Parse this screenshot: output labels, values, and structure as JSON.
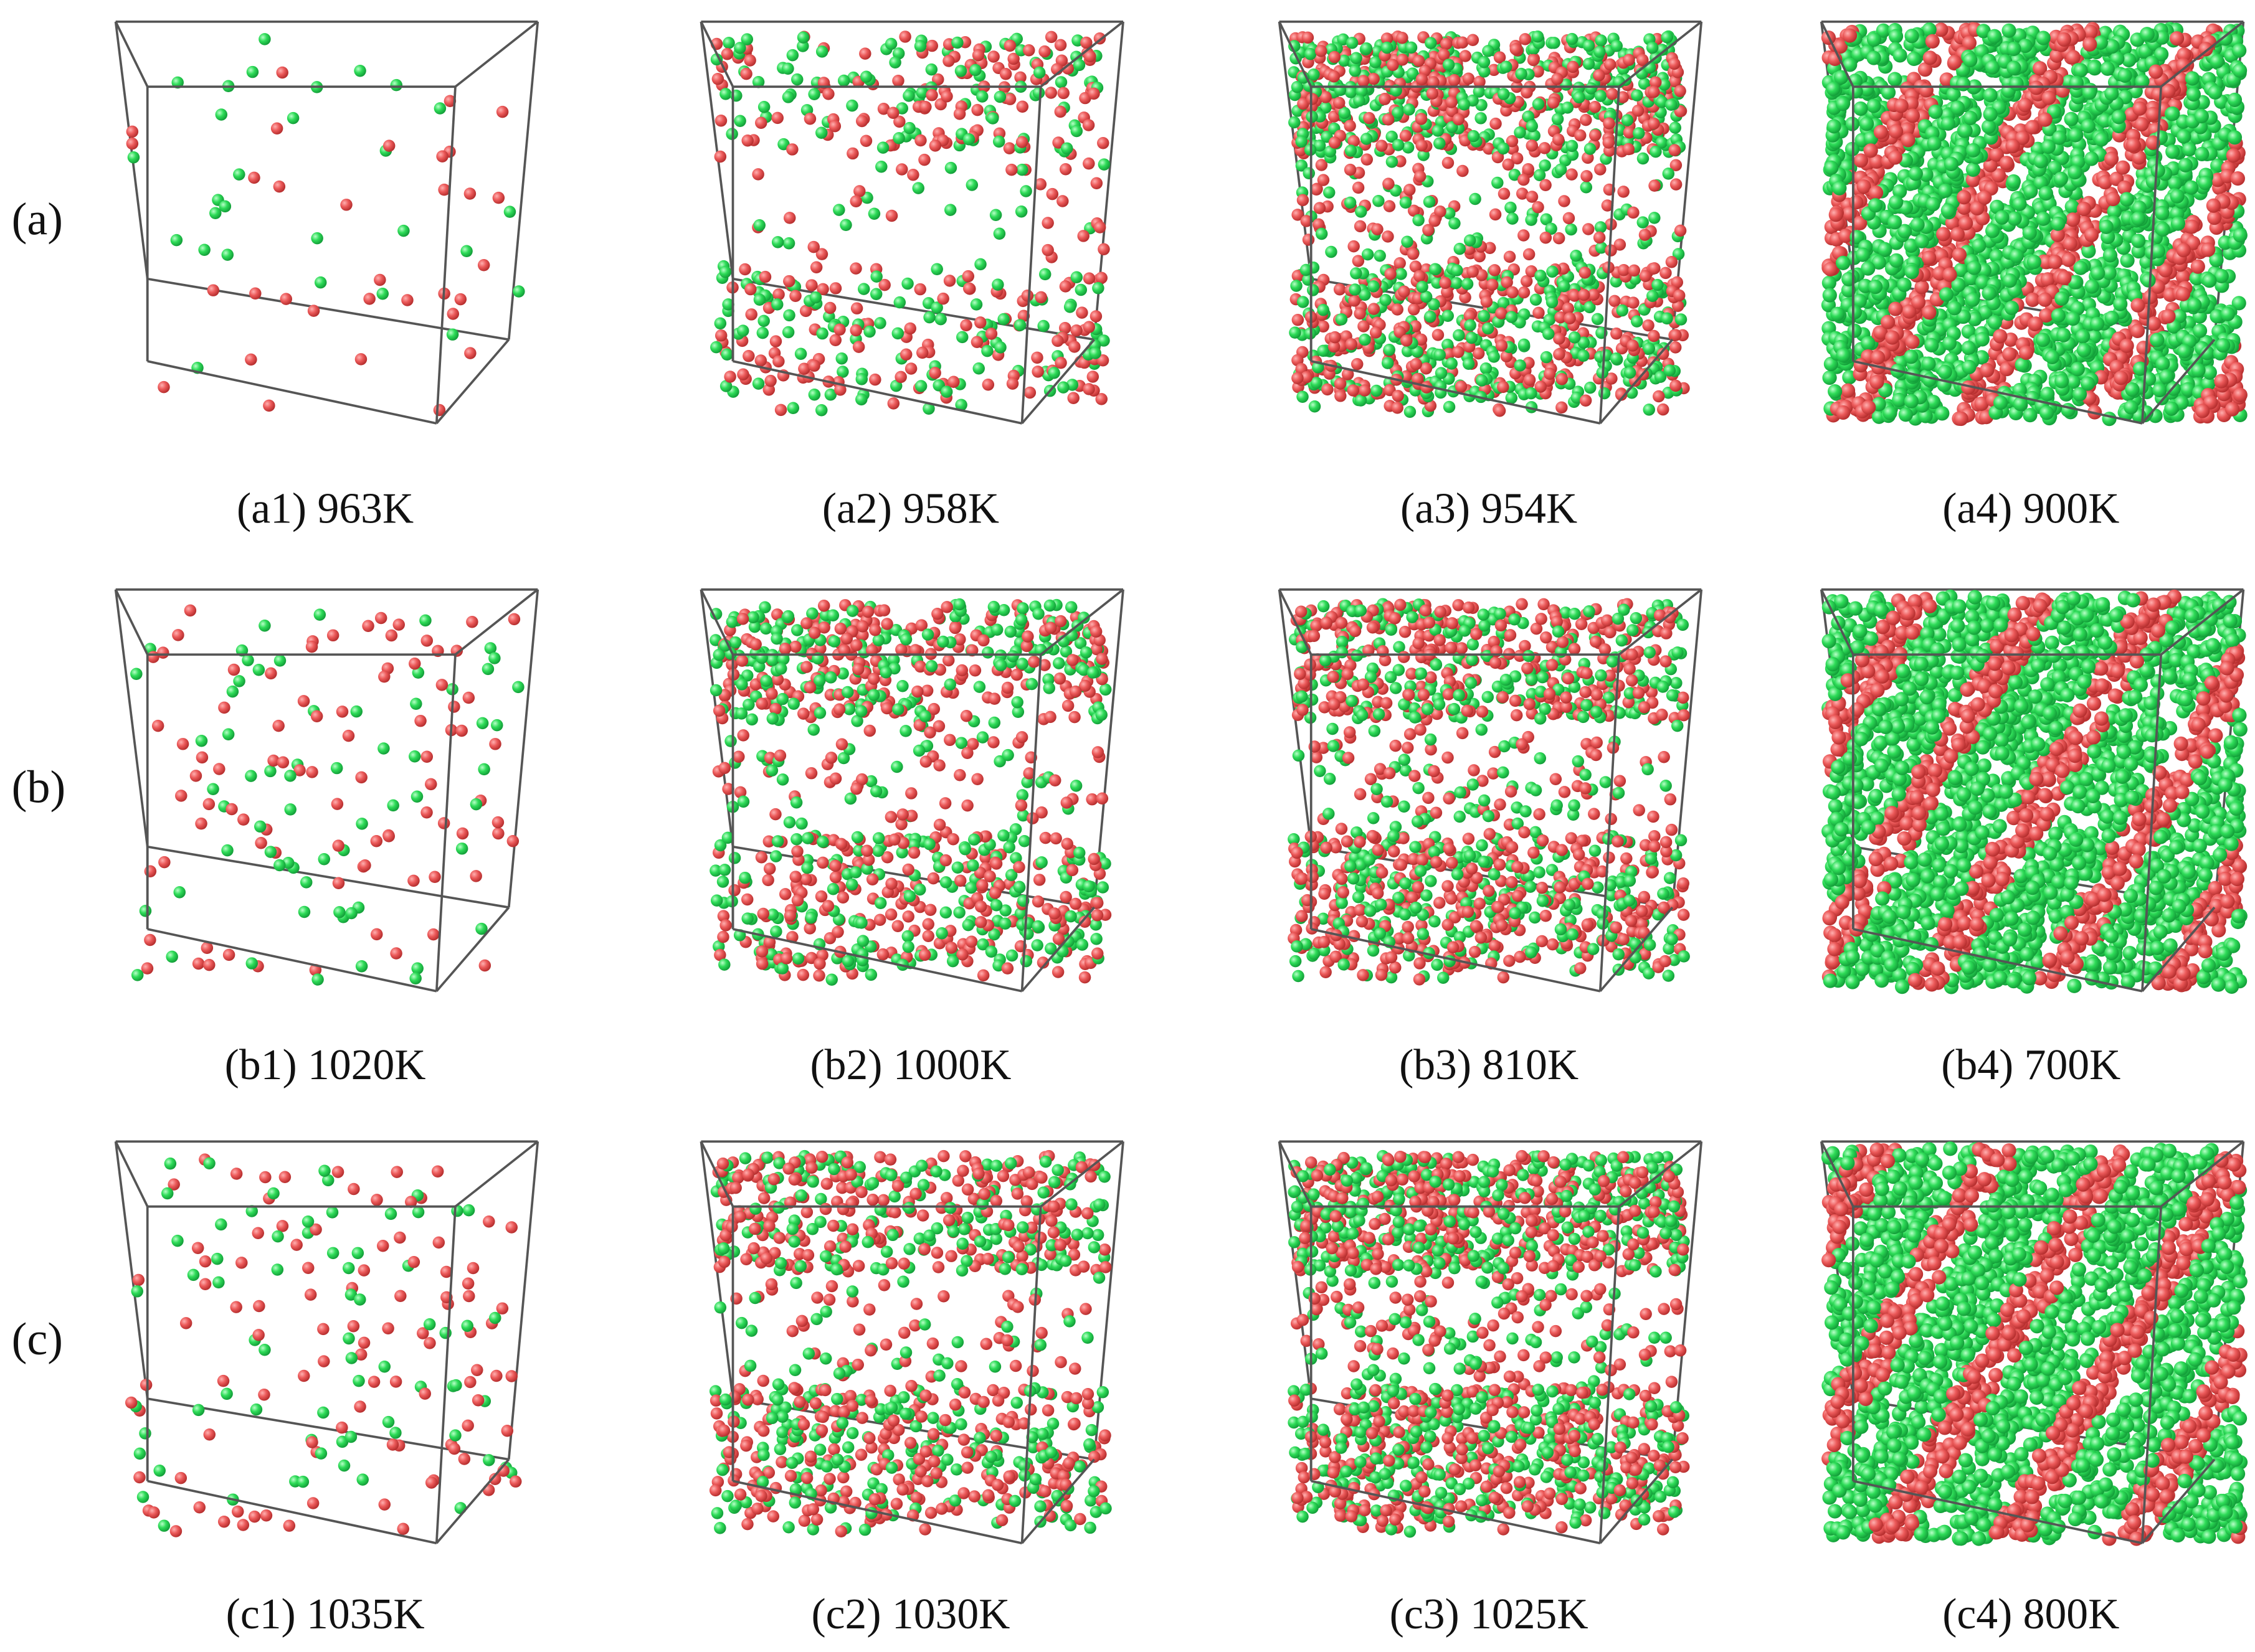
{
  "rows": [
    {
      "label": "(a)",
      "panels": [
        {
          "caption": "(a1) 963K"
        },
        {
          "caption": "(a2) 958K"
        },
        {
          "caption": "(a3) 954K"
        },
        {
          "caption": "(a4) 900K"
        }
      ]
    },
    {
      "label": "(b)",
      "panels": [
        {
          "caption": "(b1) 1020K"
        },
        {
          "caption": "(b2) 1000K"
        },
        {
          "caption": "(b3) 810K"
        },
        {
          "caption": "(b4) 700K"
        }
      ]
    },
    {
      "label": "(c)",
      "panels": [
        {
          "caption": "(c1) 1035K"
        },
        {
          "caption": "(c2) 1030K"
        },
        {
          "caption": "(c3) 1025K"
        },
        {
          "caption": "(c4) 800K"
        }
      ]
    }
  ]
}
